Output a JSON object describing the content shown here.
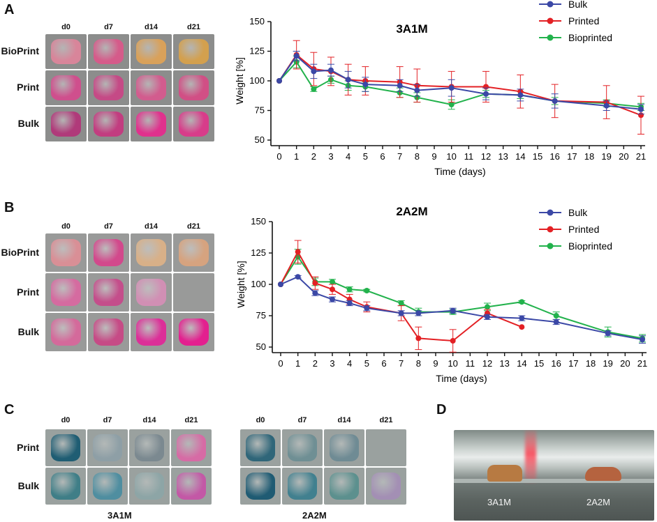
{
  "panels": {
    "A": {
      "letter": "A"
    },
    "B": {
      "letter": "B"
    },
    "C": {
      "letter": "C"
    },
    "D": {
      "letter": "D"
    }
  },
  "photoA": {
    "columns": [
      "d0",
      "d7",
      "d14",
      "d21"
    ],
    "rows": [
      "BioPrint",
      "Print",
      "Bulk"
    ],
    "colors": [
      [
        "#d8859a",
        "#d55b8a",
        "#d9a15a",
        "#d3a04e"
      ],
      [
        "#cf4f8d",
        "#c54a86",
        "#d25c8e",
        "#d14f85"
      ],
      [
        "#b03a7a",
        "#c23d80",
        "#e0318d",
        "#d83c8a"
      ]
    ]
  },
  "photoB": {
    "columns": [
      "d0",
      "d7",
      "d14",
      "d21"
    ],
    "rows": [
      "BioPrint",
      "Print",
      "Bulk"
    ],
    "colors": [
      [
        "#d98f96",
        "#d2498c",
        "#d8b088",
        "#d6a37f"
      ],
      [
        "#d56ba0",
        "#c44e8b",
        "#d18fb4",
        ""
      ],
      [
        "#d46a9b",
        "#c64b86",
        "#dc2f98",
        "#e3208f"
      ]
    ]
  },
  "photoC": {
    "columns": [
      "d0",
      "d7",
      "d14",
      "d21"
    ],
    "rows": [
      "Print",
      "Bulk"
    ],
    "left": {
      "caption": "3A1M",
      "colors": [
        [
          "#1f5d73",
          "#8e9fa6",
          "#7b8990",
          "#d66ba5"
        ],
        [
          "#3f7e87",
          "#4f8ea0",
          "#8da5a6",
          "#c358a6"
        ]
      ]
    },
    "right": {
      "caption": "2A2M",
      "colors": [
        [
          "#2f6679",
          "#6f8f94",
          "#6f8b94",
          ""
        ],
        [
          "#1f5b73",
          "#41808f",
          "#5c908e",
          "#a38fb4"
        ]
      ]
    }
  },
  "photoD": {
    "labels": [
      "3A1M",
      "2A2M"
    ]
  },
  "legend_colors": {
    "Bulk": "#3b48a6",
    "Printed": "#e32024",
    "Bioprinted": "#22b24c"
  },
  "chart_data": [
    {
      "type": "line",
      "title": "3A1M",
      "xlabel": "Time (days)",
      "ylabel": "Weight [%]",
      "ylim": [
        50,
        150
      ],
      "yticks": [
        50,
        75,
        100,
        125,
        150
      ],
      "x_ticks": [
        0,
        1,
        2,
        3,
        4,
        5,
        6,
        7,
        8,
        9,
        10,
        11,
        12,
        13,
        14,
        15,
        16,
        17,
        18,
        19,
        20,
        21
      ],
      "series": [
        {
          "name": "Bulk",
          "color": "#3b48a6",
          "x": [
            0,
            1,
            2,
            3,
            4,
            5,
            7,
            8,
            10,
            12,
            14,
            16,
            19,
            21
          ],
          "values": [
            100,
            121,
            108,
            109,
            101,
            97,
            96,
            92,
            94,
            89,
            88,
            83,
            79,
            76
          ],
          "err": [
            0,
            4,
            6,
            5,
            7,
            6,
            5,
            5,
            7,
            5,
            5,
            6,
            4,
            4
          ]
        },
        {
          "name": "Printed",
          "color": "#e32024",
          "x": [
            0,
            1,
            2,
            3,
            4,
            5,
            7,
            8,
            10,
            12,
            14,
            16,
            19,
            21
          ],
          "values": [
            100,
            122,
            110,
            108,
            101,
            100,
            99,
            96,
            95,
            95,
            91,
            83,
            82,
            71
          ],
          "err": [
            0,
            12,
            14,
            12,
            13,
            12,
            13,
            14,
            13,
            13,
            14,
            14,
            14,
            16
          ]
        },
        {
          "name": "Bioprinted",
          "color": "#22b24c",
          "x": [
            0,
            1,
            2,
            3,
            4,
            5,
            7,
            8,
            10,
            12,
            14,
            16,
            19,
            21
          ],
          "values": [
            100,
            116,
            93,
            101,
            96,
            95,
            90,
            86,
            80,
            89,
            88,
            83,
            81,
            78
          ],
          "err": [
            0,
            5,
            2,
            3,
            4,
            4,
            4,
            4,
            4,
            3,
            3,
            3,
            3,
            3
          ]
        }
      ]
    },
    {
      "type": "line",
      "title": "2A2M",
      "xlabel": "Time (days)",
      "ylabel": "Weight [%]",
      "ylim": [
        50,
        150
      ],
      "yticks": [
        50,
        75,
        100,
        125,
        150
      ],
      "x_ticks": [
        0,
        1,
        2,
        3,
        4,
        5,
        6,
        7,
        8,
        9,
        10,
        11,
        12,
        13,
        14,
        15,
        16,
        17,
        18,
        19,
        20,
        21
      ],
      "series": [
        {
          "name": "Bulk",
          "color": "#3b48a6",
          "x": [
            0,
            1,
            2,
            3,
            4,
            5,
            7,
            8,
            10,
            12,
            14,
            16,
            19,
            21
          ],
          "values": [
            100,
            106,
            93,
            88,
            85,
            81,
            77,
            77,
            79,
            74,
            73,
            70,
            61,
            56
          ],
          "err": [
            0,
            1,
            2,
            2,
            2,
            2,
            2,
            2,
            2,
            2,
            2,
            2,
            2,
            3
          ]
        },
        {
          "name": "Printed",
          "color": "#e32024",
          "x": [
            0,
            1,
            2,
            3,
            4,
            5,
            7,
            8,
            10,
            12,
            14
          ],
          "values": [
            100,
            126,
            101,
            96,
            88,
            82,
            77,
            57,
            55,
            77,
            66
          ],
          "err": [
            0,
            9,
            5,
            4,
            4,
            4,
            6,
            9,
            9,
            3,
            0
          ]
        },
        {
          "name": "Bioprinted",
          "color": "#22b24c",
          "x": [
            0,
            1,
            2,
            3,
            4,
            5,
            7,
            8,
            10,
            12,
            14,
            16,
            19,
            21
          ],
          "values": [
            100,
            122,
            102,
            102,
            96,
            95,
            85,
            78,
            78,
            82,
            86,
            75,
            62,
            57
          ],
          "err": [
            0,
            6,
            3,
            2,
            2,
            1,
            2,
            3,
            2,
            3,
            1,
            3,
            4,
            3
          ]
        }
      ]
    }
  ]
}
